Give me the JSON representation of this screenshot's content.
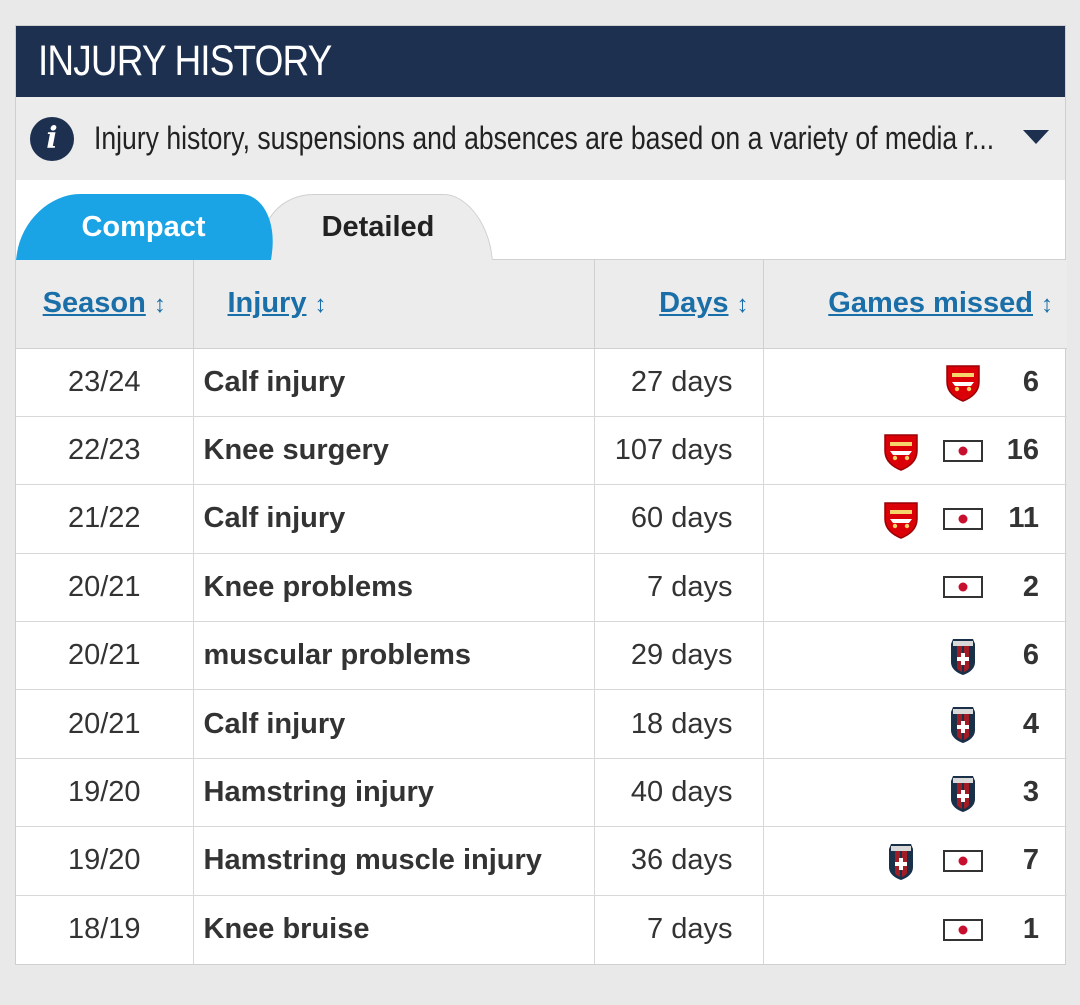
{
  "header": {
    "title": "INJURY HISTORY"
  },
  "info": {
    "text": "Injury history, suspensions and absences are based on a variety of media r..."
  },
  "tabs": {
    "compact": "Compact",
    "detailed": "Detailed",
    "active": "compact"
  },
  "table": {
    "columns": {
      "season": "Season",
      "injury": "Injury",
      "days": "Days",
      "games": "Games missed"
    },
    "rows": [
      {
        "season": "23/24",
        "injury": "Calf injury",
        "days": "27 days",
        "icons": [
          "arsenal-crest-icon"
        ],
        "games": "6"
      },
      {
        "season": "22/23",
        "injury": "Knee surgery",
        "days": "107 days",
        "icons": [
          "arsenal-crest-icon",
          "japan-flag-icon"
        ],
        "games": "16"
      },
      {
        "season": "21/22",
        "injury": "Calf injury",
        "days": "60 days",
        "icons": [
          "arsenal-crest-icon",
          "japan-flag-icon"
        ],
        "games": "11"
      },
      {
        "season": "20/21",
        "injury": "Knee problems",
        "days": "7 days",
        "icons": [
          "japan-flag-icon"
        ],
        "games": "2"
      },
      {
        "season": "20/21",
        "injury": "muscular problems",
        "days": "29 days",
        "icons": [
          "bologna-crest-icon"
        ],
        "games": "6"
      },
      {
        "season": "20/21",
        "injury": "Calf injury",
        "days": "18 days",
        "icons": [
          "bologna-crest-icon"
        ],
        "games": "4"
      },
      {
        "season": "19/20",
        "injury": "Hamstring injury",
        "days": "40 days",
        "icons": [
          "bologna-crest-icon"
        ],
        "games": "3"
      },
      {
        "season": "19/20",
        "injury": "Hamstring muscle injury",
        "days": "36 days",
        "icons": [
          "bologna-crest-icon",
          "japan-flag-icon"
        ],
        "games": "7"
      },
      {
        "season": "18/19",
        "injury": "Knee bruise",
        "days": "7 days",
        "icons": [
          "japan-flag-icon"
        ],
        "games": "1"
      }
    ]
  },
  "colors": {
    "header_bg": "#1d3050",
    "tab_active": "#1aa3e5",
    "link": "#1b6fa8",
    "arsenal_red": "#db0007",
    "bologna_blue": "#1a2f48",
    "bologna_red": "#a21c26",
    "flag_red": "#c8102e"
  }
}
